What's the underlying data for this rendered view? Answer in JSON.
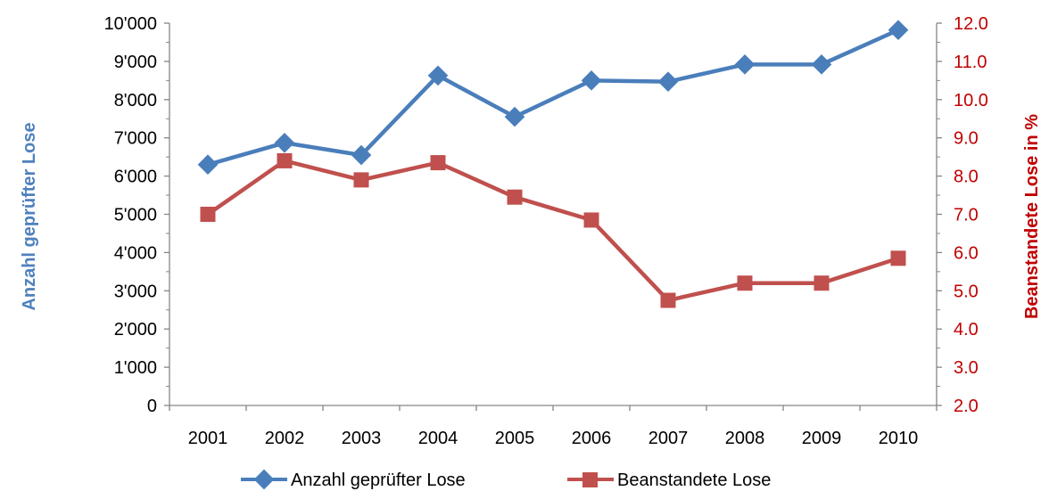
{
  "chart_data": {
    "type": "line",
    "title": "",
    "categories": [
      "2001",
      "2002",
      "2003",
      "2004",
      "2005",
      "2006",
      "2007",
      "2008",
      "2009",
      "2010"
    ],
    "y_left": {
      "label": "Anzahl geprüfter Lose",
      "ylim": [
        0,
        10000
      ],
      "major_step": 1000,
      "tick_labels": [
        "0",
        "1'000",
        "2'000",
        "3'000",
        "4'000",
        "5'000",
        "6'000",
        "7'000",
        "8'000",
        "9'000",
        "10'000"
      ]
    },
    "y_right": {
      "label": "Beanstandete Lose in %",
      "ylim": [
        2.0,
        12.0
      ],
      "major_step": 1.0,
      "tick_labels": [
        "2.0",
        "3.0",
        "4.0",
        "5.0",
        "6.0",
        "7.0",
        "8.0",
        "9.0",
        "10.0",
        "11.0",
        "12.0"
      ]
    },
    "series": [
      {
        "name": "Anzahl geprüfter Lose",
        "axis": "left",
        "color": "#4a7ebb",
        "marker": "diamond",
        "values": [
          6300,
          6870,
          6550,
          8630,
          7550,
          8500,
          8470,
          8920,
          8920,
          9820
        ]
      },
      {
        "name": "Beanstandete Lose",
        "axis": "right",
        "color": "#c0504d",
        "marker": "square",
        "values": [
          7.0,
          8.4,
          7.9,
          8.35,
          7.45,
          6.85,
          4.75,
          5.2,
          5.2,
          5.85
        ]
      }
    ],
    "grid": false,
    "legend_position": "bottom"
  }
}
